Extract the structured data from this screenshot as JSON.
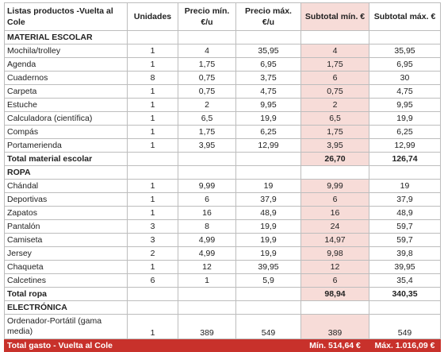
{
  "headers": {
    "name": "Listas productos -Vuelta al Cole",
    "units": "Unidades",
    "min": "Precio mín. €/u",
    "max": "Precio máx. €/u",
    "sub_min": "Subtotal mín. €",
    "sub_max": "Subtotal máx. €"
  },
  "sections": [
    {
      "title": "MATERIAL ESCOLAR",
      "rows": [
        {
          "name": "Mochila/trolley",
          "units": "1",
          "min": "4",
          "max": "35,95",
          "sub_min": "4",
          "sub_max": "35,95"
        },
        {
          "name": "Agenda",
          "units": "1",
          "min": "1,75",
          "max": "6,95",
          "sub_min": "1,75",
          "sub_max": "6,95"
        },
        {
          "name": "Cuadernos",
          "units": "8",
          "min": "0,75",
          "max": "3,75",
          "sub_min": "6",
          "sub_max": "30"
        },
        {
          "name": "Carpeta",
          "units": "1",
          "min": "0,75",
          "max": "4,75",
          "sub_min": "0,75",
          "sub_max": "4,75"
        },
        {
          "name": "Estuche",
          "units": "1",
          "min": "2",
          "max": "9,95",
          "sub_min": "2",
          "sub_max": "9,95"
        },
        {
          "name": "Calculadora (científica)",
          "units": "1",
          "min": "6,5",
          "max": "19,9",
          "sub_min": "6,5",
          "sub_max": "19,9"
        },
        {
          "name": "Compás",
          "units": "1",
          "min": "1,75",
          "max": "6,25",
          "sub_min": "1,75",
          "sub_max": "6,25"
        },
        {
          "name": "Portamerienda",
          "units": "1",
          "min": "3,95",
          "max": "12,99",
          "sub_min": "3,95",
          "sub_max": "12,99"
        }
      ],
      "total": {
        "label": "Total material escolar",
        "sub_min": "26,70",
        "sub_max": "126,74"
      }
    },
    {
      "title": "ROPA",
      "rows": [
        {
          "name": "Chándal",
          "units": "1",
          "min": "9,99",
          "max": "19",
          "sub_min": "9,99",
          "sub_max": "19"
        },
        {
          "name": "Deportivas",
          "units": "1",
          "min": "6",
          "max": "37,9",
          "sub_min": "6",
          "sub_max": "37,9"
        },
        {
          "name": "Zapatos",
          "units": "1",
          "min": "16",
          "max": "48,9",
          "sub_min": "16",
          "sub_max": "48,9"
        },
        {
          "name": "Pantalón",
          "units": "3",
          "min": "8",
          "max": "19,9",
          "sub_min": "24",
          "sub_max": "59,7"
        },
        {
          "name": "Camiseta",
          "units": "3",
          "min": "4,99",
          "max": "19,9",
          "sub_min": "14,97",
          "sub_max": "59,7"
        },
        {
          "name": "Jersey",
          "units": "2",
          "min": "4,99",
          "max": "19,9",
          "sub_min": "9,98",
          "sub_max": "39,8"
        },
        {
          "name": "Chaqueta",
          "units": "1",
          "min": "12",
          "max": "39,95",
          "sub_min": "12",
          "sub_max": "39,95"
        },
        {
          "name": "Calcetines",
          "units": "6",
          "min": "1",
          "max": "5,9",
          "sub_min": "6",
          "sub_max": "35,4"
        }
      ],
      "total": {
        "label": "Total ropa",
        "sub_min": "98,94",
        "sub_max": "340,35"
      }
    },
    {
      "title": "ELECTRÓNICA",
      "rows": [
        {
          "name": "Ordenador-Portátil (gama media)",
          "units": "1",
          "min": "389",
          "max": "549",
          "sub_min": "389",
          "sub_max": "549"
        }
      ]
    }
  ],
  "grand_total": {
    "label": "Total gasto - Vuelta al Cole",
    "min": "Mín. 514,64 €",
    "max": "Máx. 1.016,09 €"
  },
  "colors": {
    "accent": "#c8312b",
    "subtotal_fill": "#f7dcd8",
    "grid": "#bdbdbd"
  }
}
